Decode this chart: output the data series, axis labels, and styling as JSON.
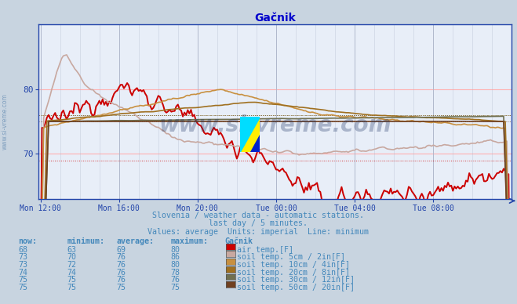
{
  "title": "Gačnik",
  "subtitle1": "Slovenia / weather data - automatic stations.",
  "subtitle2": "last day / 5 minutes.",
  "subtitle3": "Values: average  Units: imperial  Line: minimum",
  "bg_color": "#c8d4e0",
  "plot_bg_color": "#e8eef8",
  "grid_color_h": "#ffb0b0",
  "grid_color_v": "#b0b8cc",
  "title_color": "#0000cc",
  "text_color": "#4488bb",
  "axis_color": "#2244aa",
  "n_points": 288,
  "ylim_min": 63,
  "ylim_max": 90,
  "yticks": [
    70,
    80
  ],
  "xtick_labels": [
    "Mon 12:00",
    "Mon 16:00",
    "Mon 20:00",
    "Tue 00:00",
    "Tue 04:00",
    "Tue 08:00"
  ],
  "xtick_positions": [
    0,
    48,
    96,
    144,
    192,
    240
  ],
  "legend_colors": [
    "#cc0000",
    "#c8a8a0",
    "#c89040",
    "#a07020",
    "#707050",
    "#704020"
  ],
  "series": [
    {
      "name": "air temp.[F]",
      "now": 68,
      "min": 63,
      "avg": 69,
      "max": 80
    },
    {
      "name": "soil temp. 5cm / 2in[F]",
      "now": 73,
      "min": 70,
      "avg": 76,
      "max": 86
    },
    {
      "name": "soil temp. 10cm / 4in[F]",
      "now": 73,
      "min": 72,
      "avg": 76,
      "max": 80
    },
    {
      "name": "soil temp. 20cm / 8in[F]",
      "now": 74,
      "min": 74,
      "avg": 76,
      "max": 78
    },
    {
      "name": "soil temp. 30cm / 12in[F]",
      "now": 75,
      "min": 75,
      "avg": 76,
      "max": 76
    },
    {
      "name": "soil temp. 50cm / 20in[F]",
      "now": 75,
      "min": 75,
      "avg": 75,
      "max": 75
    }
  ],
  "col_headers": [
    "now:",
    "minimum:",
    "average:",
    "maximum:",
    "Gačnik"
  ],
  "watermark": "www.si-vreme.com",
  "watermark_color": "#1a3060"
}
